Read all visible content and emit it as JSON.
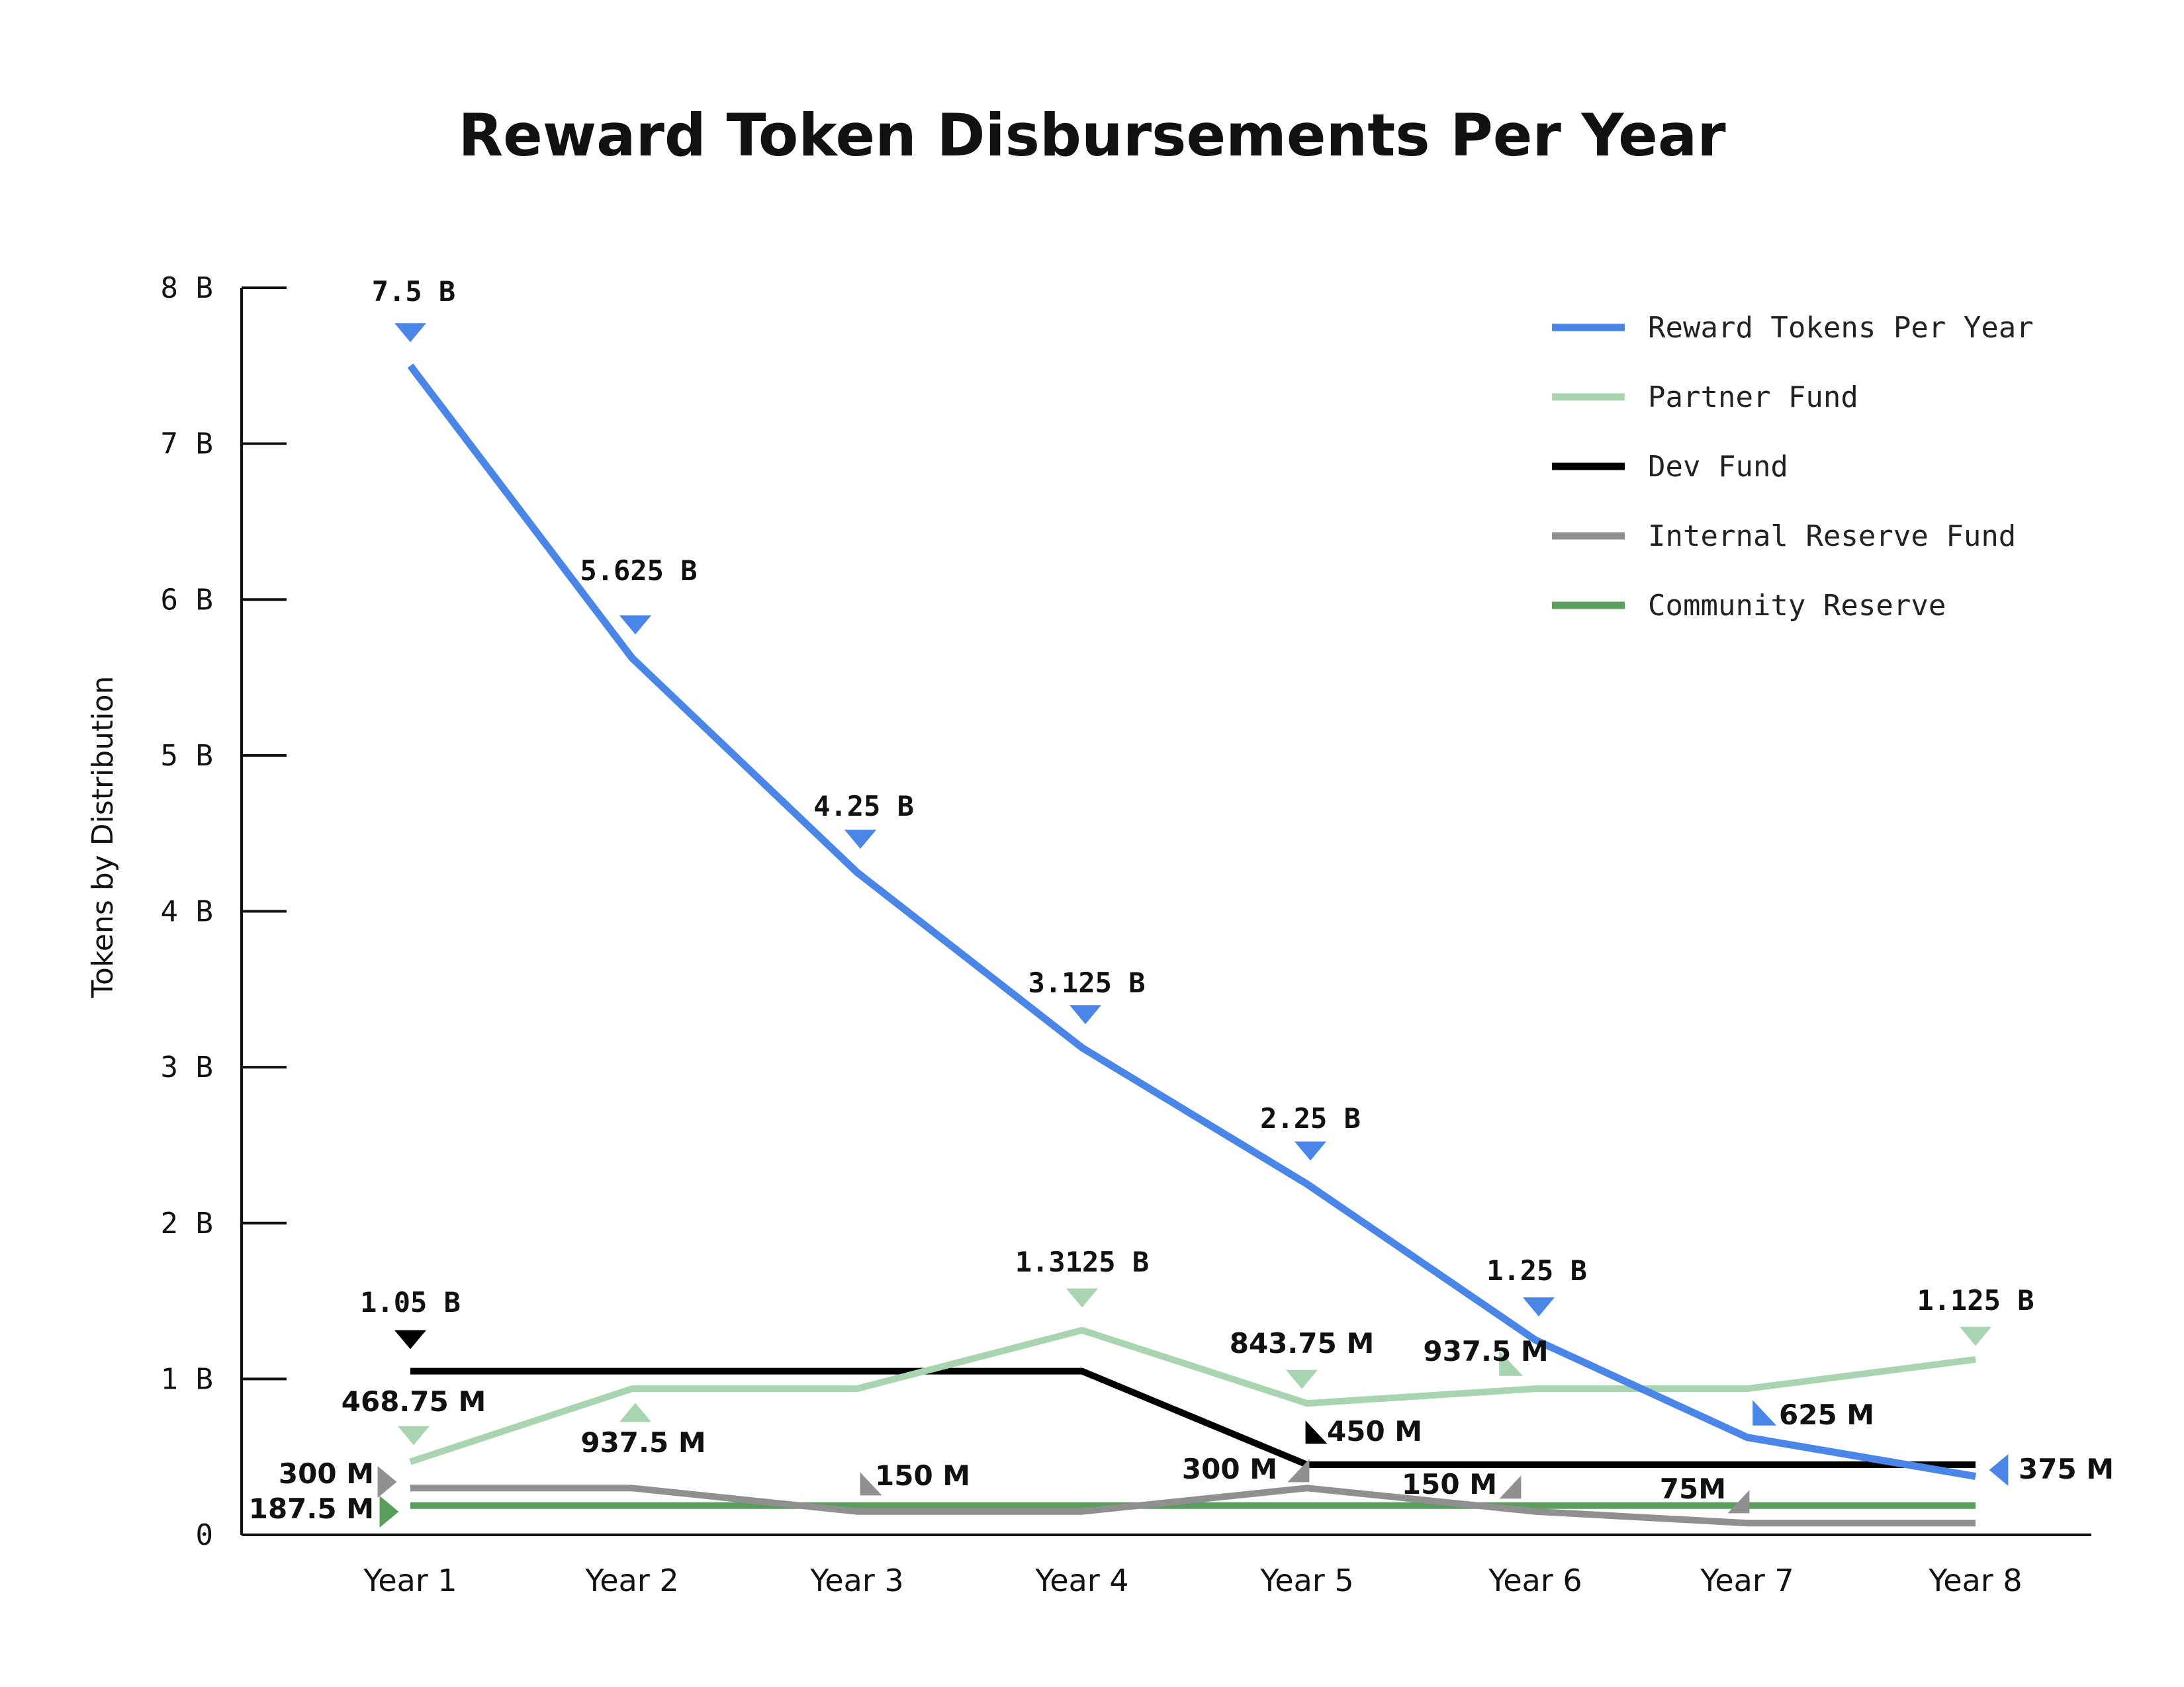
{
  "chart_data": {
    "type": "line",
    "title": "Reward Token Disbursements Per Year",
    "xlabel": "",
    "ylabel": "Tokens by Distribution",
    "categories": [
      "Year 1",
      "Year 2",
      "Year 3",
      "Year 4",
      "Year 5",
      "Year 6",
      "Year 7",
      "Year 8"
    ],
    "ylim": [
      0,
      8000000000
    ],
    "yticks": [
      0,
      1000000000,
      2000000000,
      3000000000,
      4000000000,
      5000000000,
      6000000000,
      7000000000,
      8000000000
    ],
    "ytick_labels": [
      "0",
      "1 B",
      "2 B",
      "3 B",
      "4 B",
      "5 B",
      "6 B",
      "7 B",
      "8 B"
    ],
    "legend_position": "top-right",
    "grid": false,
    "series": [
      {
        "name": "Reward Tokens Per Year",
        "color": "#4a86e8",
        "values": [
          7500000000,
          5625000000,
          4250000000,
          3125000000,
          2250000000,
          1250000000,
          625000000,
          375000000
        ],
        "labels": [
          "7.5 B",
          "5.625 B",
          "4.25 B",
          "3.125 B",
          "2.25 B",
          "1.25 B",
          "625 M",
          "375 M"
        ]
      },
      {
        "name": "Partner Fund",
        "color": "#a8d5b0",
        "values": [
          468750000,
          937500000,
          937500000,
          1312500000,
          843750000,
          937500000,
          937500000,
          1125000000
        ],
        "labels": [
          "468.75 M",
          "937.5 M",
          "",
          "1.3125 B",
          "843.75 M",
          "937.5 M",
          "",
          "1.125 B"
        ]
      },
      {
        "name": "Dev Fund",
        "color": "#000000",
        "values": [
          1050000000,
          1050000000,
          1050000000,
          1050000000,
          450000000,
          450000000,
          450000000,
          450000000
        ],
        "labels": [
          "1.05 B",
          "",
          "",
          "",
          "450 M",
          "",
          "",
          ""
        ]
      },
      {
        "name": "Internal Reserve Fund",
        "color": "#909090",
        "values": [
          300000000,
          300000000,
          150000000,
          150000000,
          300000000,
          150000000,
          75000000,
          75000000
        ],
        "labels": [
          "300 M",
          "",
          "150 M",
          "",
          "300 M",
          "150 M",
          "75M",
          ""
        ]
      },
      {
        "name": "Community Reserve",
        "color": "#5a9e5e",
        "values": [
          187500000,
          187500000,
          187500000,
          187500000,
          187500000,
          187500000,
          187500000,
          187500000
        ],
        "labels": [
          "187.5 M",
          "",
          "",
          "",
          "",
          "",
          "",
          ""
        ]
      }
    ]
  }
}
